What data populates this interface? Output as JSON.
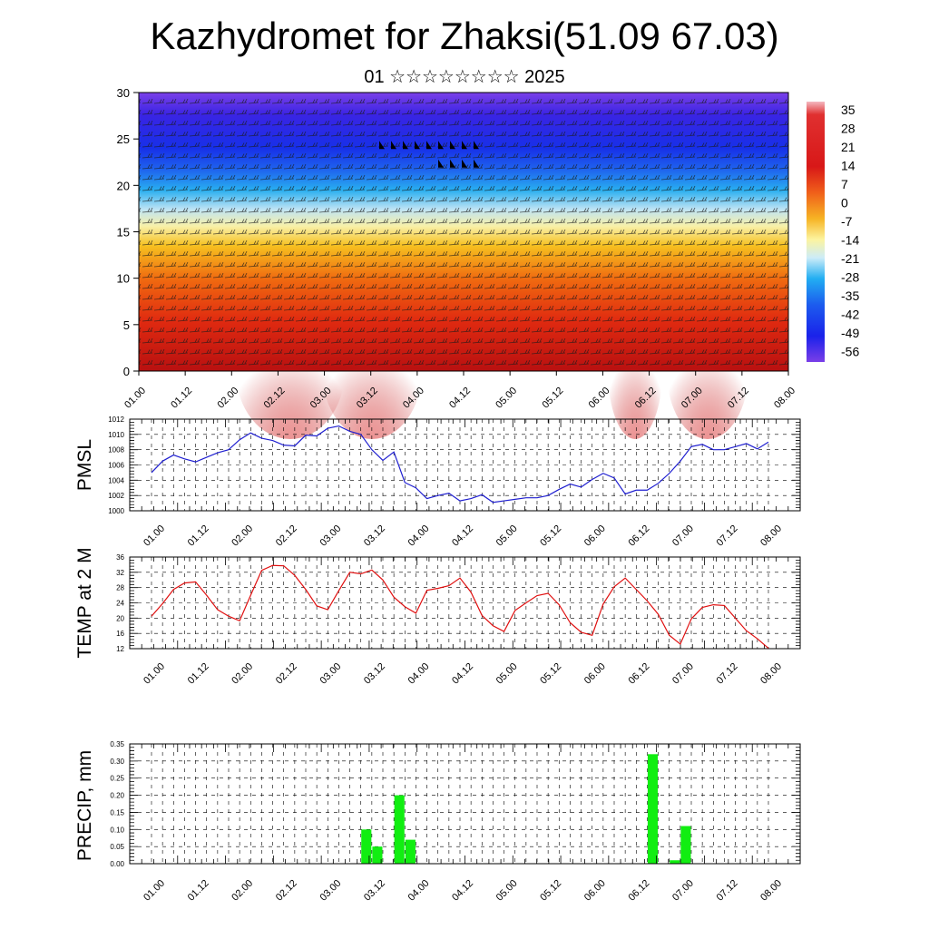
{
  "header": {
    "title": "Kazhydromet for Zhaksi(51.09 67.03)",
    "subtitle": "01 ☆☆☆☆☆☆☆☆ 2025"
  },
  "time_ticks": [
    "01.00",
    "01.12",
    "02.00",
    "02.12",
    "03.00",
    "03.12",
    "04.00",
    "04.12",
    "05.00",
    "05.12",
    "06.00",
    "06.12",
    "07.00",
    "07.12",
    "08.00"
  ],
  "chart_data": [
    {
      "type": "heatmap",
      "title": "",
      "ylabel": "",
      "ylim": [
        0,
        30
      ],
      "yticks": [
        "0",
        "5",
        "10",
        "15",
        "20",
        "25",
        "30"
      ],
      "colorbar_labels": [
        "35",
        "28",
        "21",
        "14",
        "7",
        "0",
        "-7",
        "-14",
        "-21",
        "-28",
        "-35",
        "-42",
        "-49",
        "-56"
      ],
      "colorbar_range": [
        -60,
        38
      ],
      "colors": {
        "top": "#5a1ee0",
        "bottom": "#c01010"
      }
    },
    {
      "type": "line",
      "ylabel": "PMSL",
      "ylim": [
        1000,
        1012
      ],
      "yticks": [
        "1000",
        "1002",
        "1004",
        "1006",
        "1008",
        "1010",
        "1012"
      ],
      "series": [
        {
          "color": "#1f1fd0",
          "values": [
            1005.0,
            1006.5,
            1007.3,
            1006.8,
            1006.4,
            1007.0,
            1007.6,
            1008.0,
            1009.3,
            1010.2,
            1009.5,
            1009.2,
            1008.6,
            1008.5,
            1009.9,
            1009.8,
            1010.8,
            1011.1,
            1010.4,
            1010.0,
            1008.0,
            1006.6,
            1007.7,
            1003.7,
            1003.0,
            1001.6,
            1002.0,
            1002.3,
            1001.3,
            1001.6,
            1002.1,
            1001.1,
            1001.3,
            1001.5,
            1001.7,
            1001.7,
            1002.0,
            1002.8,
            1003.5,
            1003.1,
            1004.1,
            1004.9,
            1004.3,
            1002.2,
            1002.7,
            1002.7,
            1003.6,
            1004.9,
            1006.5,
            1008.4,
            1008.7,
            1008.0,
            1008.0,
            1008.4,
            1008.8,
            1008.1,
            1009.0
          ]
        }
      ]
    },
    {
      "type": "line",
      "ylabel": "TEMP at 2 M",
      "ylim": [
        12,
        36
      ],
      "yticks": [
        "12",
        "16",
        "20",
        "24",
        "28",
        "32",
        "36"
      ],
      "series": [
        {
          "color": "#e01010",
          "values": [
            20.5,
            23.8,
            27.5,
            29.2,
            29.5,
            26.0,
            22.2,
            20.5,
            19.3,
            26.0,
            32.5,
            33.8,
            33.7,
            31.2,
            27.5,
            23.2,
            22.2,
            27.2,
            32.0,
            31.6,
            32.6,
            30.0,
            25.5,
            23.0,
            21.3,
            27.3,
            27.8,
            28.5,
            30.5,
            26.8,
            20.7,
            18.0,
            16.5,
            22.0,
            24.0,
            25.9,
            26.5,
            23.5,
            18.8,
            16.3,
            15.5,
            23.7,
            28.2,
            30.5,
            27.5,
            24.5,
            21.0,
            15.5,
            13.2,
            19.8,
            22.8,
            23.5,
            23.3,
            20.0,
            16.7,
            14.6,
            12.1
          ]
        }
      ]
    },
    {
      "type": "bar",
      "ylabel": "PRECIP, mm",
      "ylim": [
        0,
        0.35
      ],
      "yticks": [
        "0.00",
        "0.05",
        "0.10",
        "0.15",
        "0.20",
        "0.25",
        "0.30",
        "0.35"
      ],
      "color": "#11ee11",
      "bars": [
        {
          "t": 19.5,
          "value": 0.1
        },
        {
          "t": 20.5,
          "value": 0.05
        },
        {
          "t": 22.5,
          "value": 0.2
        },
        {
          "t": 23.5,
          "value": 0.07
        },
        {
          "t": 45.5,
          "value": 0.32
        },
        {
          "t": 47.5,
          "value": 0.01
        },
        {
          "t": 48.5,
          "value": 0.11
        }
      ]
    }
  ]
}
